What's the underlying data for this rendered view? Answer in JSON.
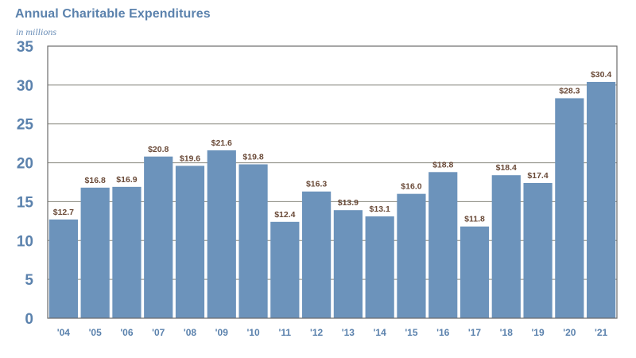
{
  "header": {
    "title": "Annual Charitable Expenditures",
    "subtitle": "in millions"
  },
  "colors": {
    "bar": "#6c93bb",
    "axis_text": "#5b82ad",
    "data_label": "#6a4a38",
    "plot_border": "#6b6b6b",
    "grid": "#8a8a80"
  },
  "chart_data": {
    "type": "bar",
    "title": "Annual Charitable Expenditures",
    "subtitle": "in millions",
    "categories": [
      "'04",
      "'05",
      "'06",
      "'07",
      "'08",
      "'09",
      "'10",
      "'11",
      "'12",
      "'13",
      "'14",
      "'15",
      "'16",
      "'17",
      "'18",
      "'19",
      "'20",
      "'21"
    ],
    "values": [
      12.7,
      16.8,
      16.9,
      20.8,
      19.6,
      21.6,
      19.8,
      12.4,
      16.3,
      13.9,
      13.1,
      16.0,
      18.8,
      11.8,
      18.4,
      17.4,
      28.3,
      30.4
    ],
    "data_labels": [
      "$12.7",
      "$16.8",
      "$16.9",
      "$20.8",
      "$19.6",
      "$21.6",
      "$19.8",
      "$12.4",
      "$16.3",
      "$13.9",
      "$13.1",
      "$16.0",
      "$18.8",
      "$11.8",
      "$18.4",
      "$17.4",
      "$28.3",
      "$30.4"
    ],
    "yticks": [
      0,
      5,
      10,
      15,
      20,
      25,
      30,
      35
    ],
    "ylim": [
      0,
      35
    ],
    "xlabel": "",
    "ylabel": "",
    "grid": true,
    "legend": "none"
  }
}
